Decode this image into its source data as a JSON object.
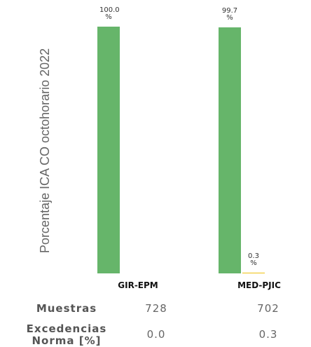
{
  "chart_data": {
    "type": "bar",
    "y_label": "Porcentaje ICA CO octohorario 2022",
    "categories": [
      "GIR-EPM",
      "MED-PJIC"
    ],
    "series": [
      {
        "color": "#66b56a",
        "values": [
          100.0,
          99.7
        ],
        "value_labels": [
          "100.0 %",
          "99.7 %"
        ]
      },
      {
        "color": "#f0c419",
        "values": [
          null,
          0.3
        ],
        "value_labels": [
          null,
          "0.3 %"
        ]
      }
    ],
    "ylim": [
      0,
      100
    ]
  },
  "table": {
    "rows": [
      [
        "Muestras",
        "728",
        "702"
      ],
      [
        "Excedencias Norma [%]",
        "0.0",
        "0.3"
      ]
    ]
  }
}
